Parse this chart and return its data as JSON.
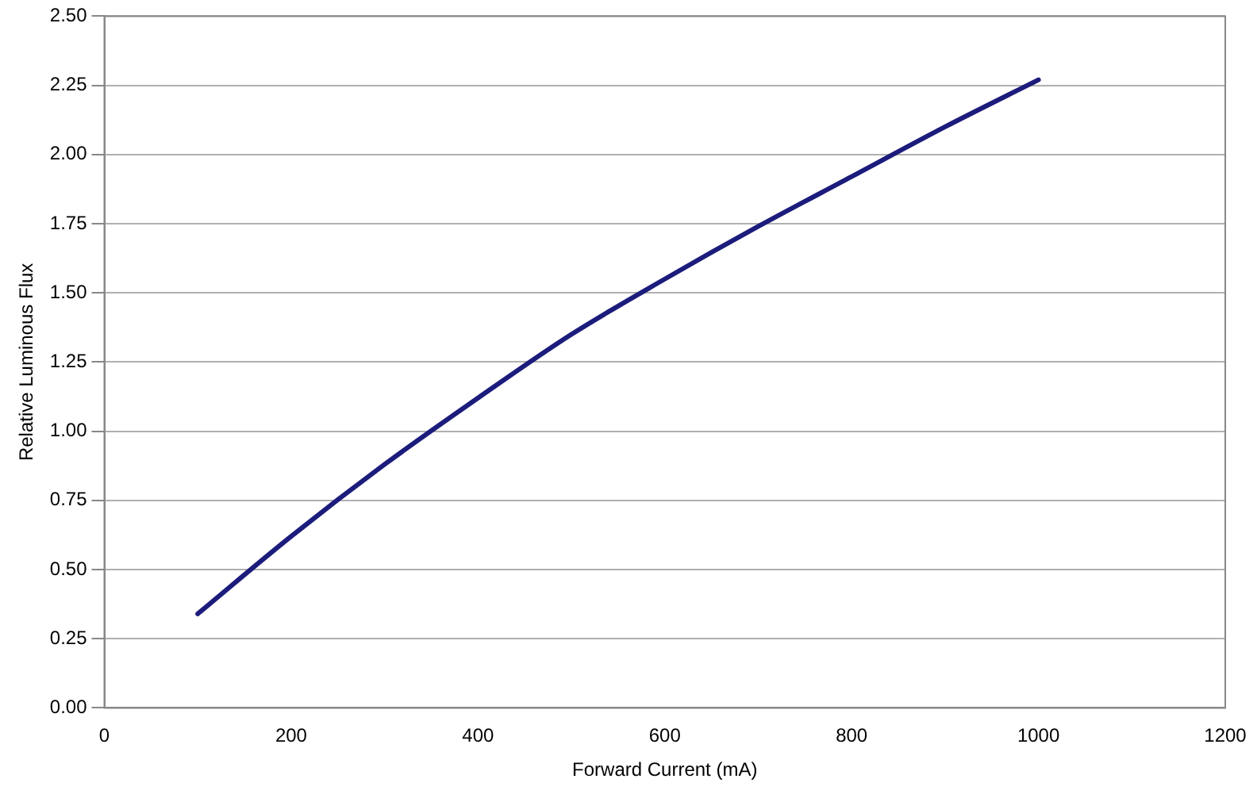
{
  "chart_data": {
    "type": "line",
    "xlabel": "Forward Current (mA)",
    "ylabel": "Relative Luminous Flux",
    "x": [
      100,
      200,
      300,
      400,
      500,
      600,
      700,
      800,
      900,
      1000
    ],
    "series": [
      {
        "color": "#1c1c7c",
        "values": [
          0.34,
          0.62,
          0.88,
          1.12,
          1.35,
          1.55,
          1.74,
          1.92,
          2.1,
          2.27
        ]
      }
    ],
    "xlim": [
      0,
      1200
    ],
    "xticks": [
      0,
      200,
      400,
      600,
      800,
      1000,
      1200
    ],
    "ylim": [
      0,
      2.5
    ],
    "yticks": [
      {
        "value": 0,
        "label": "0.00"
      },
      {
        "value": 0.25,
        "label": "0.25"
      },
      {
        "value": 0.5,
        "label": "0.50"
      },
      {
        "value": 0.75,
        "label": "0.75"
      },
      {
        "value": 1,
        "label": "1.00"
      },
      {
        "value": 1.25,
        "label": "1.25"
      },
      {
        "value": 1.5,
        "label": "1.50"
      },
      {
        "value": 1.75,
        "label": "1.75"
      },
      {
        "value": 2,
        "label": "2.00"
      },
      {
        "value": 2.25,
        "label": "2.25"
      },
      {
        "value": 2.5,
        "label": "2.50"
      }
    ],
    "grid": "y",
    "legend": false,
    "marker": "none",
    "line_style": "solid"
  }
}
